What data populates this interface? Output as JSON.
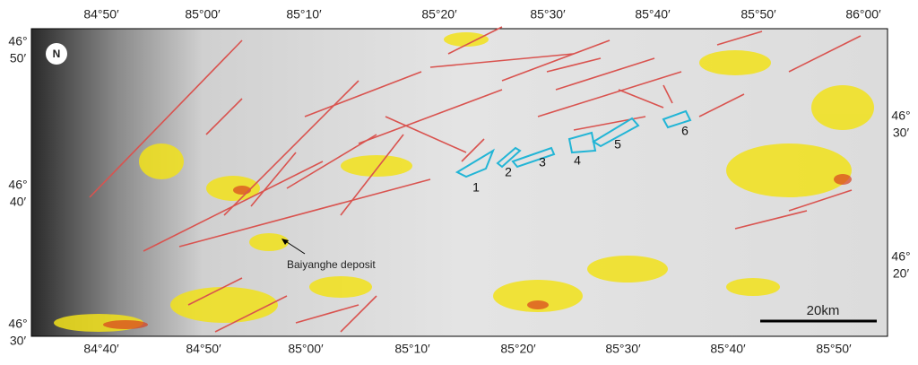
{
  "north_arrow": "N",
  "top_labels": [
    "84°50′",
    "85°00′",
    "85°10′",
    "85°20′",
    "85°30′",
    "85°40′",
    "85°50′",
    "86°00′"
  ],
  "bottom_labels": [
    "84°40′",
    "84°50′",
    "85°00′",
    "85°10′",
    "85°20′",
    "85°30′",
    "85°40′",
    "85°50′"
  ],
  "left_labels": [
    {
      "deg": "46°",
      "min": "50′"
    },
    {
      "deg": "46°",
      "min": "40′"
    },
    {
      "deg": "46°",
      "min": "30′"
    }
  ],
  "right_labels": [
    {
      "deg": "46°",
      "min": "30′"
    },
    {
      "deg": "46°",
      "min": "20′"
    }
  ],
  "zones": [
    "1",
    "2",
    "3",
    "4",
    "5",
    "6"
  ],
  "deposit": "Baiyanghe deposit",
  "scale_bar": "20km"
}
